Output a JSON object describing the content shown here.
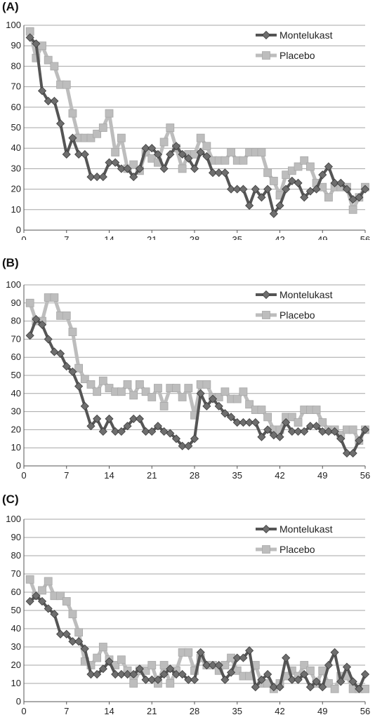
{
  "colors": {
    "montelukast": "#555555",
    "placebo": "#bdbdbd",
    "grid": "#a6a6a6",
    "axis": "#555555"
  },
  "chart_data": [
    {
      "type": "line",
      "panel_label": "(A)",
      "xticks": [
        0,
        7,
        14,
        21,
        28,
        35,
        42,
        49,
        56
      ],
      "yticks": [
        0,
        10,
        20,
        30,
        40,
        50,
        60,
        70,
        80,
        90,
        100
      ],
      "xlim": [
        0,
        56
      ],
      "ylim": [
        0,
        100
      ],
      "grid": true,
      "legend": "top-right",
      "series": [
        {
          "name": "Montelukast",
          "marker": "diamond",
          "x": [
            1,
            2,
            3,
            4,
            5,
            6,
            7,
            8,
            9,
            10,
            11,
            12,
            13,
            14,
            15,
            16,
            17,
            18,
            19,
            20,
            21,
            22,
            23,
            24,
            25,
            26,
            27,
            28,
            29,
            30,
            31,
            32,
            33,
            34,
            35,
            36,
            37,
            38,
            39,
            40,
            41,
            42,
            43,
            44,
            45,
            46,
            47,
            48,
            49,
            50,
            51,
            52,
            53,
            54,
            55,
            56
          ],
          "values": [
            94,
            91,
            68,
            63,
            63,
            52,
            37,
            45,
            37,
            37,
            26,
            26,
            26,
            33,
            33,
            30,
            30,
            26,
            30,
            40,
            40,
            37,
            30,
            37,
            41,
            37,
            35,
            30,
            38,
            36,
            28,
            28,
            28,
            20,
            20,
            20,
            12,
            20,
            16,
            20,
            8,
            12,
            20,
            24,
            23,
            16,
            19,
            20,
            27,
            31,
            23,
            23,
            20,
            15,
            16,
            20
          ]
        },
        {
          "name": "Placebo",
          "marker": "square",
          "x": [
            1,
            2,
            3,
            4,
            5,
            6,
            7,
            8,
            9,
            10,
            11,
            12,
            13,
            14,
            15,
            16,
            17,
            18,
            19,
            20,
            21,
            22,
            23,
            24,
            25,
            26,
            27,
            28,
            29,
            30,
            31,
            32,
            33,
            34,
            35,
            36,
            37,
            38,
            39,
            40,
            41,
            42,
            43,
            44,
            45,
            46,
            47,
            48,
            49,
            50,
            51,
            52,
            53,
            54,
            55,
            56
          ],
          "values": [
            97,
            84,
            90,
            83,
            80,
            71,
            71,
            57,
            45,
            45,
            45,
            47,
            50,
            57,
            38,
            45,
            30,
            32,
            29,
            38,
            35,
            33,
            43,
            50,
            40,
            30,
            37,
            37,
            45,
            41,
            34,
            34,
            34,
            38,
            34,
            34,
            38,
            38,
            38,
            28,
            24,
            17,
            27,
            29,
            31,
            34,
            31,
            23,
            21,
            16,
            21,
            21,
            21,
            10,
            16,
            21
          ]
        }
      ]
    },
    {
      "type": "line",
      "panel_label": "(B)",
      "xticks": [
        0,
        7,
        14,
        21,
        28,
        35,
        42,
        49,
        56
      ],
      "yticks": [
        0,
        10,
        20,
        30,
        40,
        50,
        60,
        70,
        80,
        90,
        100
      ],
      "xlim": [
        0,
        56
      ],
      "ylim": [
        0,
        100
      ],
      "grid": true,
      "legend": "top-right",
      "series": [
        {
          "name": "Montelukast",
          "marker": "diamond",
          "x": [
            1,
            2,
            3,
            4,
            5,
            6,
            7,
            8,
            9,
            10,
            11,
            12,
            13,
            14,
            15,
            16,
            17,
            18,
            19,
            20,
            21,
            22,
            23,
            24,
            25,
            26,
            27,
            28,
            29,
            30,
            31,
            32,
            33,
            34,
            35,
            36,
            37,
            38,
            39,
            40,
            41,
            42,
            43,
            44,
            45,
            46,
            47,
            48,
            49,
            50,
            51,
            52,
            53,
            54,
            55,
            56
          ],
          "values": [
            72,
            81,
            78,
            70,
            63,
            62,
            55,
            52,
            44,
            33,
            22,
            26,
            19,
            26,
            19,
            19,
            22,
            26,
            26,
            19,
            19,
            22,
            19,
            18,
            15,
            11,
            11,
            15,
            40,
            33,
            37,
            33,
            29,
            27,
            24,
            24,
            24,
            24,
            16,
            20,
            17,
            16,
            24,
            19,
            19,
            19,
            22,
            22,
            19,
            19,
            19,
            15,
            7,
            7,
            14,
            20
          ]
        },
        {
          "name": "Placebo",
          "marker": "square",
          "x": [
            1,
            2,
            3,
            4,
            5,
            6,
            7,
            8,
            9,
            10,
            11,
            12,
            13,
            14,
            15,
            16,
            17,
            18,
            19,
            20,
            21,
            22,
            23,
            24,
            25,
            26,
            27,
            28,
            29,
            30,
            31,
            32,
            33,
            34,
            35,
            36,
            37,
            38,
            39,
            40,
            41,
            42,
            43,
            44,
            45,
            46,
            47,
            48,
            49,
            50,
            51,
            52,
            53,
            54,
            55,
            56
          ],
          "values": [
            90,
            80,
            80,
            93,
            93,
            83,
            83,
            74,
            54,
            48,
            45,
            41,
            47,
            43,
            41,
            41,
            45,
            39,
            45,
            41,
            38,
            43,
            33,
            43,
            43,
            38,
            43,
            28,
            45,
            45,
            38,
            38,
            41,
            37,
            37,
            41,
            34,
            31,
            31,
            27,
            20,
            20,
            27,
            27,
            24,
            31,
            31,
            31,
            24,
            20,
            20,
            17,
            20,
            20,
            14,
            20
          ]
        }
      ]
    },
    {
      "type": "line",
      "panel_label": "(C)",
      "xticks": [
        0,
        7,
        14,
        21,
        28,
        35,
        42,
        49,
        56
      ],
      "yticks": [
        0,
        10,
        20,
        30,
        40,
        50,
        60,
        70,
        80,
        90,
        100
      ],
      "xlim": [
        0,
        56
      ],
      "ylim": [
        0,
        100
      ],
      "grid": true,
      "legend": "top-right",
      "series": [
        {
          "name": "Montelukast",
          "marker": "diamond",
          "x": [
            1,
            2,
            3,
            4,
            5,
            6,
            7,
            8,
            9,
            10,
            11,
            12,
            13,
            14,
            15,
            16,
            17,
            18,
            19,
            20,
            21,
            22,
            23,
            24,
            25,
            26,
            27,
            28,
            29,
            30,
            31,
            32,
            33,
            34,
            35,
            36,
            37,
            38,
            39,
            40,
            41,
            42,
            43,
            44,
            45,
            46,
            47,
            48,
            49,
            50,
            51,
            52,
            53,
            54,
            55,
            56
          ],
          "values": [
            55,
            58,
            55,
            51,
            48,
            37,
            37,
            33,
            33,
            29,
            15,
            15,
            18,
            22,
            15,
            15,
            15,
            15,
            18,
            12,
            12,
            12,
            15,
            18,
            15,
            15,
            12,
            12,
            27,
            20,
            20,
            20,
            12,
            16,
            24,
            24,
            28,
            8,
            12,
            15,
            8,
            8,
            24,
            12,
            12,
            15,
            8,
            11,
            8,
            20,
            27,
            11,
            19,
            11,
            7,
            15
          ]
        },
        {
          "name": "Placebo",
          "marker": "square",
          "x": [
            1,
            2,
            3,
            4,
            5,
            6,
            7,
            8,
            9,
            10,
            11,
            12,
            13,
            14,
            15,
            16,
            17,
            18,
            19,
            20,
            21,
            22,
            23,
            24,
            25,
            26,
            27,
            28,
            29,
            30,
            31,
            32,
            33,
            34,
            35,
            36,
            37,
            38,
            39,
            40,
            41,
            42,
            43,
            44,
            45,
            46,
            47,
            48,
            49,
            50,
            51,
            52,
            53,
            54,
            55,
            56
          ],
          "values": [
            67,
            58,
            61,
            66,
            58,
            58,
            55,
            48,
            38,
            22,
            20,
            24,
            30,
            23,
            20,
            23,
            17,
            10,
            17,
            17,
            20,
            10,
            20,
            10,
            17,
            27,
            27,
            17,
            24,
            20,
            20,
            17,
            20,
            24,
            17,
            14,
            14,
            20,
            10,
            10,
            7,
            10,
            14,
            17,
            14,
            20,
            17,
            10,
            17,
            10,
            7,
            14,
            14,
            7,
            7,
            7
          ]
        }
      ]
    }
  ]
}
